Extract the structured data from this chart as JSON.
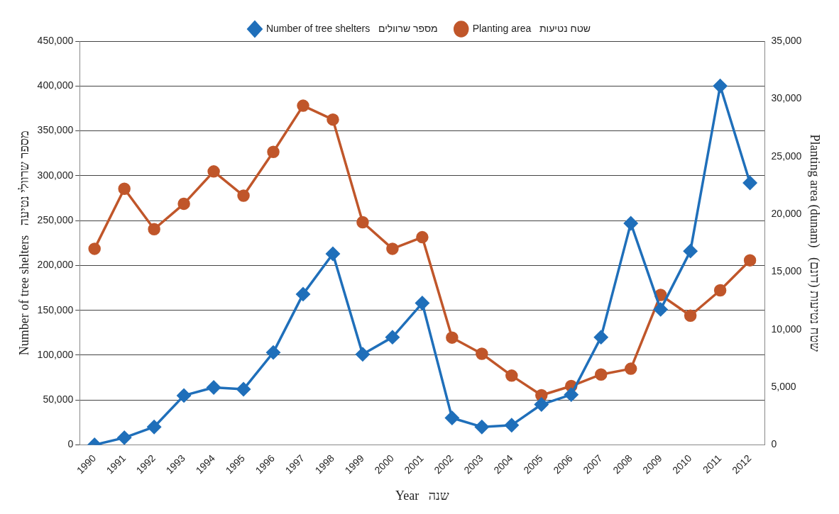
{
  "chart_data": {
    "type": "line",
    "categories": [
      "1990",
      "1991",
      "1992",
      "1993",
      "1994",
      "1995",
      "1996",
      "1997",
      "1998",
      "1999",
      "2000",
      "2001",
      "2002",
      "2003",
      "2004",
      "2005",
      "2006",
      "2007",
      "2008",
      "2009",
      "2010",
      "2011",
      "2012"
    ],
    "series": [
      {
        "name": "Number of tree shelters   מספר שרוולים",
        "color": "#1f6fba",
        "marker": "diamond",
        "values": [
          0,
          8000,
          20000,
          55000,
          64000,
          62000,
          103000,
          168000,
          213000,
          101000,
          120000,
          158000,
          30000,
          20000,
          22000,
          45000,
          56000,
          120000,
          247000,
          151000,
          216000,
          400000,
          292000
        ]
      },
      {
        "name": "Planting area   שטח נטיעות",
        "color": "#c0562a",
        "marker": "circle",
        "axis": "y2",
        "values": [
          17000,
          22200,
          18700,
          20900,
          23700,
          21600,
          25400,
          29400,
          28200,
          19300,
          17000,
          18000,
          9300,
          7900,
          6000,
          4300,
          5100,
          6100,
          6600,
          13000,
          11200,
          13400,
          16000
        ]
      }
    ],
    "xlabel": "Year   שנה",
    "ylabel": "Number of tree shelters   מספר שרוולי נטיעה",
    "y2label": "Planting area (dunam)   שטח נטיעות (דונם)",
    "ylim": [
      0,
      450000
    ],
    "yticks": [
      0,
      {
        "value": 50000,
        "label": "50,000"
      },
      {
        "value": 100000,
        "label": "100,000"
      },
      {
        "value": 150000,
        "label": "150,000"
      },
      {
        "value": 200000,
        "label": "200,000"
      },
      {
        "value": 250000,
        "label": "250,000"
      },
      {
        "value": 300000,
        "label": "300,000"
      },
      {
        "value": 350000,
        "label": "350,000"
      },
      {
        "value": 400000,
        "label": "400,000"
      },
      {
        "value": 450000,
        "label": "450,000"
      }
    ],
    "y2lim": [
      0,
      35000
    ],
    "y2ticks": [
      0,
      {
        "value": 5000,
        "label": "5,000"
      },
      {
        "value": 10000,
        "label": "10,000"
      },
      {
        "value": 15000,
        "label": "15,000"
      },
      {
        "value": 20000,
        "label": "20,000"
      },
      {
        "value": 25000,
        "label": "25,000"
      },
      {
        "value": 30000,
        "label": "30,000"
      },
      {
        "value": 35000,
        "label": "35,000"
      }
    ],
    "grid": "y",
    "legend": "top",
    "line_style": "solid"
  }
}
